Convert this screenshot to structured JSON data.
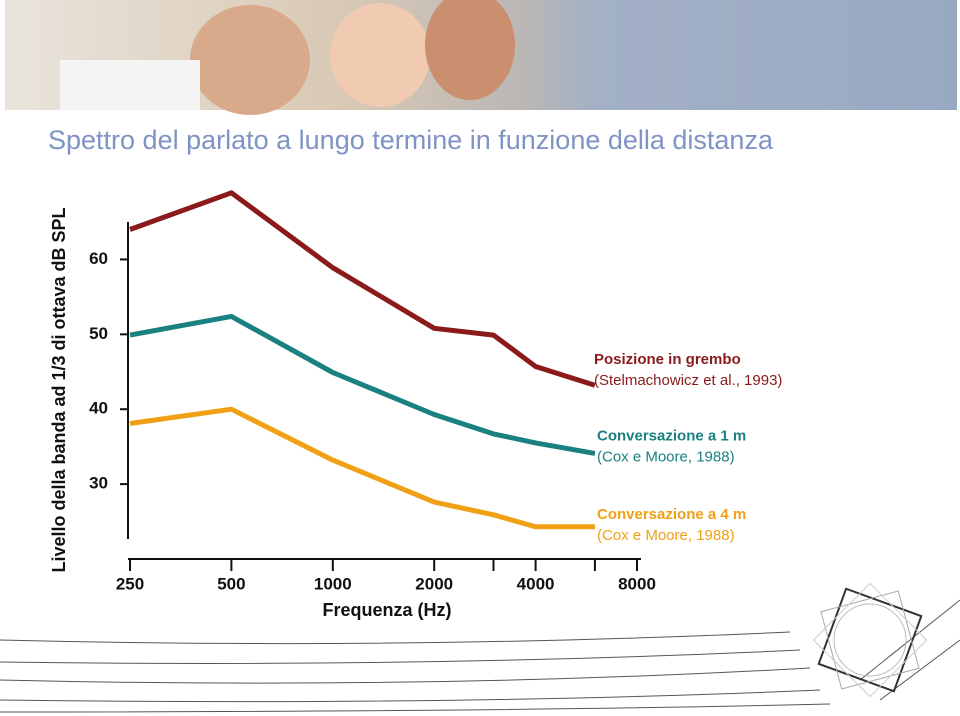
{
  "chart_data": {
    "type": "line",
    "title": "Spettro del parlato a lungo termine in funzione della distanza",
    "x_label": "Frequenza (Hz)",
    "y_label": "Livello della banda ad 1/3 di ottava dB SPL",
    "x": [
      250,
      500,
      1000,
      2000,
      3000,
      4000,
      6000
    ],
    "xlim": [
      250,
      8000
    ],
    "xscale": "log2",
    "xticks": [
      250,
      500,
      1000,
      2000,
      4000,
      8000
    ],
    "minor_xticks": [
      3000,
      6000
    ],
    "ylim": [
      20,
      65
    ],
    "yticks": [
      30,
      40,
      50,
      60
    ],
    "series": [
      {
        "name": "Posizione in grembo",
        "source": "(Stelmachowicz et al., 1993)",
        "color": "#8b1a1a",
        "values": [
          64.0,
          68.9,
          58.9,
          50.8,
          49.9,
          45.7,
          43.2
        ]
      },
      {
        "name": "Conversazione a  1 m",
        "source": "(Cox e Moore, 1988)",
        "color": "#1a8080",
        "values": [
          49.9,
          52.4,
          44.9,
          39.3,
          36.7,
          35.5,
          34.1
        ]
      },
      {
        "name": "Conversazione a 4 m",
        "source": "(Cox e Moore, 1988)",
        "color": "#f0a015",
        "values": [
          38.1,
          40.0,
          33.2,
          27.6,
          25.9,
          24.3,
          24.3
        ]
      }
    ]
  }
}
